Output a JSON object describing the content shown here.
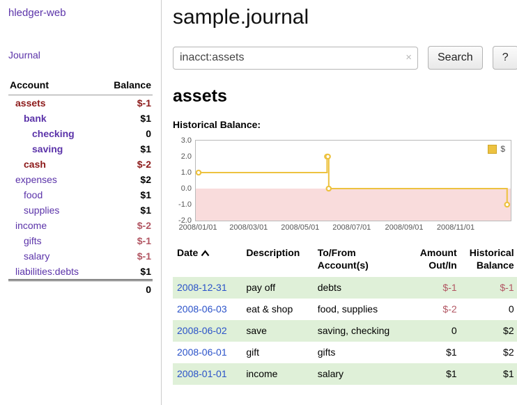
{
  "colors": {
    "accent_purple": "#5b33a9",
    "date_link": "#2a52c9",
    "negative": "#8c1a1a",
    "negative_soft": "#b25663",
    "row_green": "#dff0d8",
    "chart_line": "#edc240",
    "chart_negative_fill": "#f9dcdc"
  },
  "sidebar": {
    "app_title": "hledger-web",
    "journal_link": "Journal",
    "accounts": {
      "headers": {
        "account": "Account",
        "balance": "Balance"
      },
      "rows": [
        {
          "name": "assets",
          "balance": "$-1"
        },
        {
          "name": "bank",
          "balance": "$1"
        },
        {
          "name": "checking",
          "balance": "0"
        },
        {
          "name": "saving",
          "balance": "$1"
        },
        {
          "name": "cash",
          "balance": "$-2"
        },
        {
          "name": "expenses",
          "balance": "$2"
        },
        {
          "name": "food",
          "balance": "$1"
        },
        {
          "name": "supplies",
          "balance": "$1"
        },
        {
          "name": "income",
          "balance": "$-2"
        },
        {
          "name": "gifts",
          "balance": "$-1"
        },
        {
          "name": "salary",
          "balance": "$-1"
        },
        {
          "name": "liabilities:debts",
          "balance": "$1"
        }
      ],
      "total": "0"
    }
  },
  "main": {
    "title": "sample.journal",
    "search": {
      "value": "inacct:assets",
      "clear_icon": "×",
      "search_button": "Search",
      "help_button": "?"
    },
    "account_heading": "assets",
    "chart_title": "Historical Balance:",
    "register": {
      "headers": {
        "date": "Date",
        "description": "Description",
        "account_1": "To/From",
        "account_2": "Account(s)",
        "amount_1": "Amount",
        "amount_2": "Out/In",
        "balance_1": "Historical",
        "balance_2": "Balance"
      },
      "rows": [
        {
          "date": "2008-12-31",
          "description": "pay off",
          "account": "debts",
          "amount": "$-1",
          "balance": "$-1"
        },
        {
          "date": "2008-06-03",
          "description": "eat & shop",
          "account": "food, supplies",
          "amount": "$-2",
          "balance": "0"
        },
        {
          "date": "2008-06-02",
          "description": "save",
          "account": "saving, checking",
          "amount": "0",
          "balance": "$2"
        },
        {
          "date": "2008-06-01",
          "description": "gift",
          "account": "gifts",
          "amount": "$1",
          "balance": "$2"
        },
        {
          "date": "2008-01-01",
          "description": "income",
          "account": "salary",
          "amount": "$1",
          "balance": "$1"
        }
      ]
    }
  },
  "chart_data": {
    "type": "line",
    "step": true,
    "title": "Historical Balance:",
    "xlabel": "",
    "ylabel": "",
    "ylim": [
      -2,
      3
    ],
    "xlim": [
      "2008-01-01",
      "2009-01-01"
    ],
    "y_ticks": [
      "3.0",
      "2.0",
      "1.0",
      "0.0",
      "-1.0",
      "-2.0"
    ],
    "x_ticks": [
      "2008/01/01",
      "2008/03/01",
      "2008/05/01",
      "2008/07/01",
      "2008/09/01",
      "2008/11/01"
    ],
    "grid": false,
    "legend": {
      "label": "$",
      "position": "top-right"
    },
    "negative_region_fill": "#f9dcdc",
    "series": [
      {
        "name": "$",
        "color": "#edc240",
        "points": [
          {
            "x": "2008-01-01",
            "y": 1
          },
          {
            "x": "2008-06-01",
            "y": 2
          },
          {
            "x": "2008-06-02",
            "y": 2
          },
          {
            "x": "2008-06-03",
            "y": 0
          },
          {
            "x": "2008-12-31",
            "y": -1
          }
        ]
      }
    ]
  }
}
